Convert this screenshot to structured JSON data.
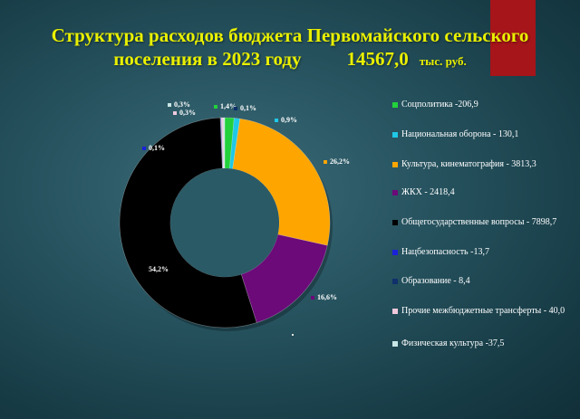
{
  "title": {
    "line1": "Структура расходов бюджета Первомайского сельского",
    "line2": "поселения  в 2023 году",
    "total": "14567,0",
    "unit": "тыс. руб."
  },
  "colors": {
    "title": "#e9f000",
    "accent_block": "#a5151a",
    "background": "#24505c"
  },
  "chart_data": {
    "type": "pie",
    "donut": true,
    "title": "Структура расходов бюджета Первомайского сельского поселения  в 2023 году",
    "legend_position": "right",
    "series": [
      {
        "name": "Соцполитика -206,9",
        "value": 206.9,
        "label": "1,4%",
        "color": "#22d13b"
      },
      {
        "name": "Национальная оборона - 130,1",
        "value": 130.1,
        "label": "0,9%",
        "color": "#1fc8e6"
      },
      {
        "name": "Культура, кинематография  - 3813,3",
        "value": 3813.3,
        "label": "26,2%",
        "color": "#ffa500"
      },
      {
        "name": "ЖКХ - 2418,4",
        "value": 2418.4,
        "label": "16,6%",
        "color": "#6b0a78"
      },
      {
        "name": "Общегосударственные вопросы - 7898,7",
        "value": 7898.7,
        "label": "54,2%",
        "color": "#000000"
      },
      {
        "name": "Нацбезопасность  -13,7",
        "value": 13.7,
        "label": "0,1%",
        "color": "#1a22d8"
      },
      {
        "name": "Образование - 8,4",
        "value": 8.4,
        "label": "0,1%",
        "color": "#10306b"
      },
      {
        "name": "Прочие межбюджетные трансферты  - 40,0",
        "value": 40.0,
        "label": "0,3%",
        "color": "#f0c8dc"
      },
      {
        "name": "Физическая культура -37,5",
        "value": 37.5,
        "label": "0,3%",
        "color": "#c8e6e6"
      }
    ]
  }
}
